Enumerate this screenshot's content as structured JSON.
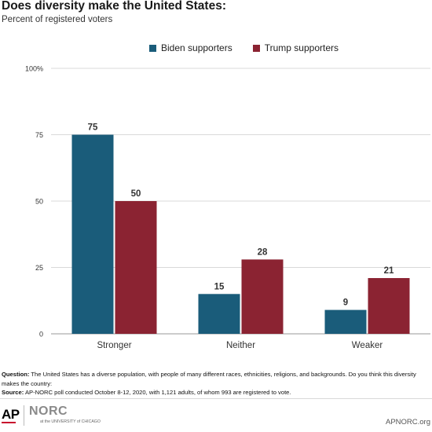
{
  "header": {
    "title": "Does diversity make the United States:",
    "subtitle": "Percent of registered voters"
  },
  "colors": {
    "biden": "#1a5c7a",
    "trump": "#8b2332",
    "gridline": "#d9d9d9",
    "axis": "#999999"
  },
  "chart_data": {
    "type": "bar",
    "title": "Does diversity make the United States:",
    "subtitle": "Percent of registered voters",
    "categories": [
      "Stronger",
      "Neither",
      "Weaker"
    ],
    "series": [
      {
        "name": "Biden supporters",
        "values": [
          75,
          15,
          9
        ],
        "color": "#1a5c7a"
      },
      {
        "name": "Trump supporters",
        "values": [
          50,
          28,
          21
        ],
        "color": "#8b2332"
      }
    ],
    "ylim": [
      0,
      100
    ],
    "yticks": [
      0,
      25,
      50,
      75,
      100
    ],
    "ytick_labels": [
      "0",
      "25",
      "50",
      "75",
      "100%"
    ],
    "xlabel": "",
    "ylabel": "",
    "legend": "top",
    "grid": true
  },
  "footnote": {
    "question_label": "Question:",
    "question_text": "The United States has a diverse population, with people of many different races, ethnicities, religions, and backgrounds.  Do you think this diversity makes the country:",
    "source_label": "Source:",
    "source_text": "AP-NORC poll conducted October 8-12, 2020, with 1,121 adults, of whom 993 are registered to vote."
  },
  "footer": {
    "ap_logo": "AP",
    "norc_logo": "NORC",
    "norc_sub": "at the UNIVERSITY of CHICAGO",
    "url": "APNORC.org"
  }
}
